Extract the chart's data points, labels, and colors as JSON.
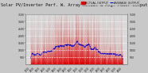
{
  "title": "Solar PV/Inverter Perf. W. Array Actual & Avg. Power Output",
  "title_fontsize": 3.8,
  "bg_color": "#c8c8c8",
  "plot_bg_color": "#d8d8d8",
  "grid_color": "#ffffff",
  "bar_color": "#dd0000",
  "avg_line_color": "#0000cc",
  "ylim": [
    0,
    3500
  ],
  "yticks_left": [
    500,
    1000,
    1500,
    2000,
    2500,
    3000,
    3500
  ],
  "yticks_right": [
    500,
    1000,
    1500,
    2000,
    2500,
    3000,
    3500
  ],
  "legend_actual": "ACTUAL OUTPUT",
  "legend_avg": "AVERAGE OUTPUT"
}
